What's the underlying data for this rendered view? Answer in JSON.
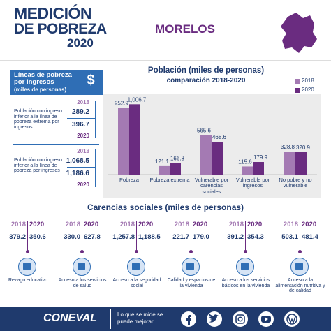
{
  "header": {
    "title_line1": "MEDICIÓN",
    "title_line2": "DE POBREZA",
    "year": "2020",
    "state": "MORELOS"
  },
  "income_lines": {
    "title": "Líneas de pobreza por ingresos",
    "subtitle": "(miles de personas)",
    "icon": "$",
    "items": [
      {
        "label": "Población con ingreso inferior a la línea de pobreza extrema por ingresos",
        "year_a": "2018",
        "value_a": "289.2",
        "value_b": "396.7",
        "year_b": "2020"
      },
      {
        "label": "Población con ingreso inferior a la línea de pobreza por ingresos",
        "year_a": "2018",
        "value_a": "1,068.5",
        "value_b": "1,186.6",
        "year_b": "2020"
      }
    ]
  },
  "chart_data": {
    "type": "bar",
    "title": "Población (miles de personas)",
    "subtitle": "comparación 2018-2020",
    "categories": [
      "Pobreza",
      "Pobreza extrema",
      "Vulnerable por carencias sociales",
      "Vulnerable por ingresos",
      "No pobre y no vulnerable"
    ],
    "series": [
      {
        "name": "2018",
        "color": "#a47ab3",
        "values": [
          952.9,
          121.1,
          565.6,
          115.6,
          328.8
        ]
      },
      {
        "name": "2020",
        "color": "#6a2c80",
        "values": [
          1006.7,
          166.8,
          468.6,
          179.9,
          320.9
        ],
        "value_labels": [
          "1,006.7",
          "166.8",
          "468.6",
          "179.9",
          "320.9"
        ]
      }
    ],
    "legend": "top-right"
  },
  "deprivations": {
    "title": "Carencias sociales (miles de personas)",
    "items": [
      {
        "year_a": "2018",
        "year_b": "2020",
        "value_a": "379.2",
        "value_b": "350.6",
        "label": "Rezago educativo"
      },
      {
        "year_a": "2018",
        "year_b": "2020",
        "value_a": "330.0",
        "value_b": "627.8",
        "label": "Acceso a los servicios de salud"
      },
      {
        "year_a": "2018",
        "year_b": "2020",
        "value_a": "1,257.8",
        "value_b": "1,188.5",
        "label": "Acceso a la seguridad social"
      },
      {
        "year_a": "2018",
        "year_b": "2020",
        "value_a": "221.7",
        "value_b": "179.0",
        "label": "Calidad y espacios de la vivienda"
      },
      {
        "year_a": "2018",
        "year_b": "2020",
        "value_a": "391.2",
        "value_b": "354.3",
        "label": "Acceso a los servicios básicos en la vivienda"
      },
      {
        "year_a": "2018",
        "year_b": "2020",
        "value_a": "503.1",
        "value_b": "481.4",
        "label": "Acceso a la alimentación nutritiva y de calidad"
      }
    ]
  },
  "footer": {
    "brand": "CONEVAL",
    "slogan": "Lo que se mide se puede mejorar"
  }
}
